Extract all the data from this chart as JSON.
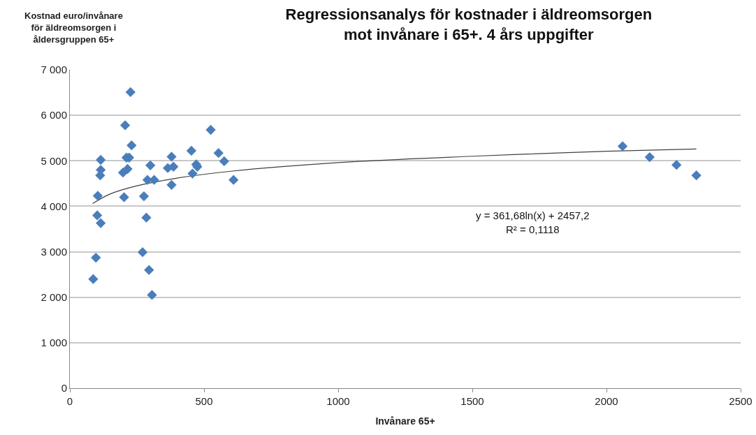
{
  "chart_data": {
    "type": "scatter",
    "title": "Regressionsanalys för kostnader i äldreomsorgen\nmot invånare i 65+. 4 års uppgifter",
    "xlabel": "Invånare 65+",
    "ylabel": "Kostnad euro/invånare\nför äldreomsorgen i\nåldersgruppen 65+",
    "annotations": [
      "y = 361,68ln(x) + 2457,2\nR² = 0,1118"
    ],
    "x": [
      226,
      206,
      230,
      115,
      211,
      221,
      115,
      113,
      198,
      215,
      300,
      104,
      202,
      276,
      289,
      314,
      102,
      115,
      285,
      97,
      87,
      271,
      295,
      306,
      379,
      365,
      386,
      379,
      453,
      471,
      475,
      457,
      525,
      554,
      575,
      610,
      2060,
      2161,
      2261,
      2335
    ],
    "series": [
      {
        "color": "#4a7ebb",
        "marker": "diamond",
        "values": [
          6510,
          5780,
          5340,
          5020,
          5070,
          5070,
          4800,
          4680,
          4740,
          4820,
          4900,
          4230,
          4200,
          4220,
          4580,
          4580,
          3800,
          3630,
          3750,
          2870,
          2400,
          2990,
          2600,
          2050,
          5090,
          4840,
          4870,
          4470,
          5220,
          4920,
          4870,
          4720,
          5680,
          5170,
          4990,
          4580,
          5320,
          5080,
          4910,
          4680
        ]
      },
      {
        "type": "line",
        "color": "#404040",
        "marker": "none",
        "line_style": "solid",
        "x": [
          85,
          150,
          250,
          400,
          600,
          1000,
          1500,
          2000,
          2335
        ],
        "values": [
          4060,
          4270,
          4450,
          4620,
          4770,
          4960,
          5100,
          5210,
          5260
        ]
      }
    ],
    "xlim": [
      0,
      2500
    ],
    "xticks": [
      0,
      500,
      1000,
      1500,
      2000,
      2500
    ],
    "ylim": [
      0,
      7000
    ],
    "yticks": [
      0,
      {
        "value": 1000,
        "label": "1 000"
      },
      {
        "value": 2000,
        "label": "2 000"
      },
      {
        "value": 3000,
        "label": "3 000"
      },
      {
        "value": 4000,
        "label": "4 000"
      },
      {
        "value": 5000,
        "label": "5 000"
      },
      {
        "value": 6000,
        "label": "6 000"
      },
      {
        "value": 7000,
        "label": "7 000"
      }
    ],
    "grid": "y"
  }
}
